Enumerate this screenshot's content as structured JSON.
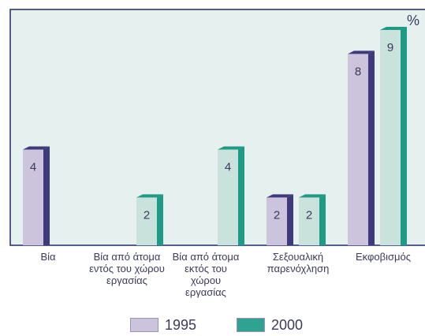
{
  "chart_data": {
    "type": "bar",
    "unit_label": "%",
    "categories": [
      [
        "Βία"
      ],
      [
        "Βία από άτομα",
        "εντός του χώρου",
        "εργασίας"
      ],
      [
        "Βία από άτομα",
        "εκτός του",
        "χώρου",
        "εργασίας"
      ],
      [
        "Σεξουαλική",
        "παρενόχληση"
      ],
      [
        "Εκφοβισμός"
      ]
    ],
    "series": [
      {
        "name": "1995",
        "values": [
          4,
          null,
          null,
          2,
          8
        ]
      },
      {
        "name": "2000",
        "values": [
          null,
          2,
          4,
          2,
          9
        ]
      }
    ],
    "ylim": [
      0,
      10
    ],
    "grid": false,
    "legend_position": "bottom",
    "colors": {
      "plot_background": "#e6f1ef",
      "plot_border": "#1e2a66",
      "series_1995_face": "#cbc4dc",
      "series_1995_side": "#3f3a7c",
      "series_2000_face": "#c9e3dc",
      "series_2000_side": "#1f9a84",
      "legend_1995": "#cbc4dc",
      "legend_2000": "#2fa38f"
    }
  }
}
